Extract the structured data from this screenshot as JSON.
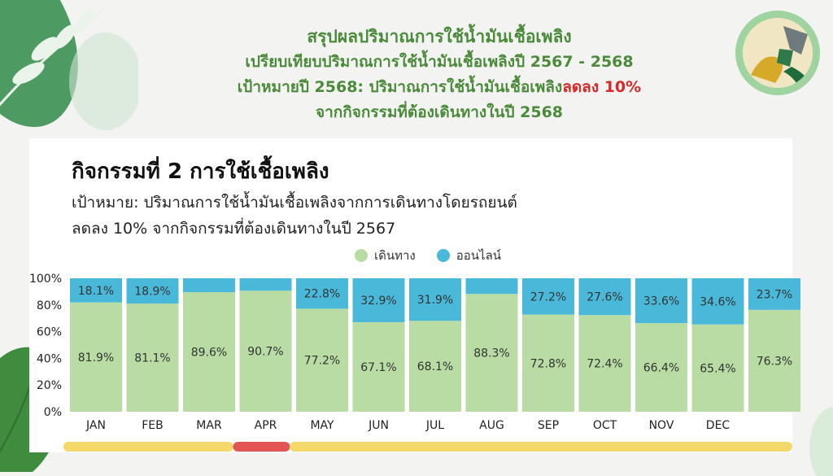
{
  "header": {
    "line1": "สรุปผลปริมาณการใช้น้ำมันเชื้อเพลิง",
    "line2": "เปรียบเทียบปริมาณการใช้น้ำมันเชื้อเพลิงปี 2567 - 2568",
    "line3_prefix": "เป้าหมายปี 2568: ปริมาณการใช้น้ำมันเชื้อเพลิง",
    "line3_highlight": "ลดลง 10%",
    "line4": "จากกิจกรรมที่ต้องเดินทางในปี 2568"
  },
  "card": {
    "title": "กิจกรรมที่ 2 การใช้เชื้อเพลิง",
    "subtitle1": "เป้าหมาย: ปริมาณการใช้น้ำมันเชื้อเพลิงจากการเดินทางโดยรถยนต์",
    "subtitle2": "ลดลง 10% จากกิจกรรมที่ต้องเดินทางในปี 2567"
  },
  "colors": {
    "travel": "#b8dca4",
    "online": "#4ab9d9",
    "status_yellow": "#f4d86a",
    "status_red": "#e25554",
    "header_green": "#4a8a3a"
  },
  "chart_data": {
    "type": "bar",
    "stacked": true,
    "categories": [
      "JAN",
      "FEB",
      "MAR",
      "APR",
      "MAY",
      "JUN",
      "JUL",
      "AUG",
      "SEP",
      "OCT",
      "NOV",
      "DEC",
      ""
    ],
    "series": [
      {
        "name": "เดินทาง",
        "values": [
          81.9,
          81.1,
          89.6,
          90.7,
          77.2,
          67.1,
          68.1,
          88.3,
          72.8,
          72.4,
          66.4,
          65.4,
          76.3
        ],
        "labels": [
          "81.9%",
          "81.1%",
          "89.6%",
          "90.7%",
          "77.2%",
          "67.1%",
          "68.1%",
          "88.3%",
          "72.8%",
          "72.4%",
          "66.4%",
          "65.4%",
          "76.3%"
        ]
      },
      {
        "name": "ออนไลน์",
        "values": [
          18.1,
          18.9,
          10.4,
          9.3,
          22.8,
          32.9,
          31.9,
          11.7,
          27.2,
          27.6,
          33.6,
          34.6,
          23.7
        ],
        "labels": [
          "18.1%",
          "18.9%",
          "",
          "",
          "22.8%",
          "32.9%",
          "31.9%",
          "",
          "27.2%",
          "27.6%",
          "33.6%",
          "34.6%",
          "23.7%"
        ]
      }
    ],
    "y_ticks": [
      "0%",
      "20%",
      "40%",
      "60%",
      "80%",
      "100%"
    ],
    "ylim": [
      0,
      100
    ],
    "legend_position": "top-center",
    "grid": false
  },
  "status_bars": [
    {
      "from": "JAN",
      "to": "MAR",
      "color": "yellow"
    },
    {
      "from": "APR",
      "to": "APR",
      "color": "red"
    },
    {
      "from": "MAY",
      "to": "",
      "color": "yellow"
    }
  ]
}
